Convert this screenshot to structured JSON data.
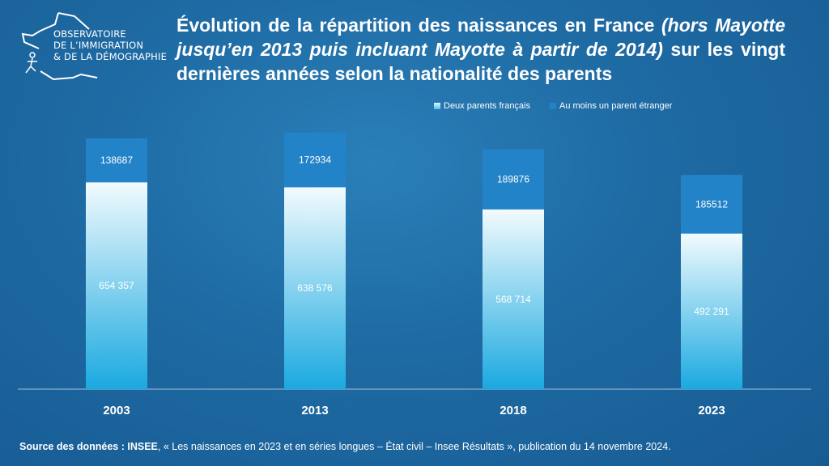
{
  "logo": {
    "lines": [
      "OBSERVATOIRE",
      "DE L’IMMIGRATION",
      "& DE LA DÉMOGRAPHIE"
    ]
  },
  "title": {
    "part1": "Évolution de la répartition des naissances en France ",
    "part2_italic": "(hors Mayotte jusqu’en 2013 puis incluant Mayotte à partir de 2014)",
    "part3": " sur les vingt dernières années selon la nationalité des parents"
  },
  "source": {
    "label": "Source des données : INSEE",
    "text": ", « Les naissances en 2023 et en séries longues – État civil – Insee Résultats », publication du 14 novembre 2024."
  },
  "chart_data": {
    "type": "bar",
    "stacked": true,
    "categories": [
      "2003",
      "2013",
      "2018",
      "2023"
    ],
    "series": [
      {
        "name": "Deux parents français",
        "values": [
          654357,
          638576,
          568714,
          492291
        ],
        "labels": [
          "654 357",
          "638 576",
          "568 714",
          "492 291"
        ],
        "color": "#b9e4f5"
      },
      {
        "name": "Au moins un parent étranger",
        "values": [
          138687,
          172934,
          189876,
          185512
        ],
        "labels": [
          "138687",
          "172934",
          "189876",
          "185512"
        ],
        "color": "#2383c8"
      }
    ],
    "ylim": [
      0,
      870000
    ],
    "grid": false,
    "legend": "top-right",
    "xlabel": "",
    "ylabel": ""
  }
}
